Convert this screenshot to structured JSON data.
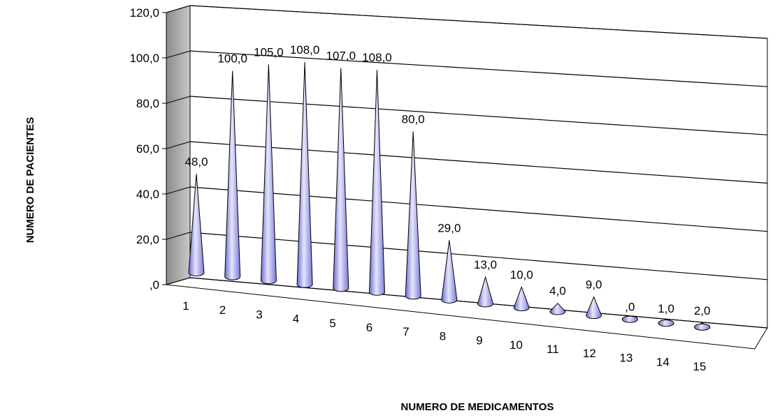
{
  "chart_data": {
    "type": "bar",
    "style": "3d-cone",
    "categories": [
      "1",
      "2",
      "3",
      "4",
      "5",
      "6",
      "7",
      "8",
      "9",
      "10",
      "11",
      "12",
      "13",
      "14",
      "15"
    ],
    "values": [
      48,
      100,
      105,
      108,
      107,
      108,
      80,
      29,
      13,
      10,
      4,
      9,
      0,
      1,
      2
    ],
    "data_labels": [
      "48,0",
      "100,0",
      "105,0",
      "108,0",
      "107,0",
      "108,0",
      "80,0",
      "29,0",
      "13,0",
      "10,0",
      "4,0",
      "9,0",
      ",0",
      "1,0",
      "2,0"
    ],
    "y_ticks": [
      ",0",
      "20,0",
      "40,0",
      "60,0",
      "80,0",
      "100,0",
      "120,0"
    ],
    "ylim": [
      0,
      120
    ],
    "xlabel": "NUMERO DE MEDICAMENTOS",
    "ylabel": "NUMERO DE PACIENTES",
    "grid": true,
    "legend": "none",
    "colors": {
      "cone": "#9999ff",
      "cone_light": "#e0e0ff",
      "cone_dark": "#5a5ab8",
      "wall": "#ffffff",
      "side_wall": "#a8a8a8",
      "floor": "#ffffff",
      "grid": "#000000"
    }
  }
}
